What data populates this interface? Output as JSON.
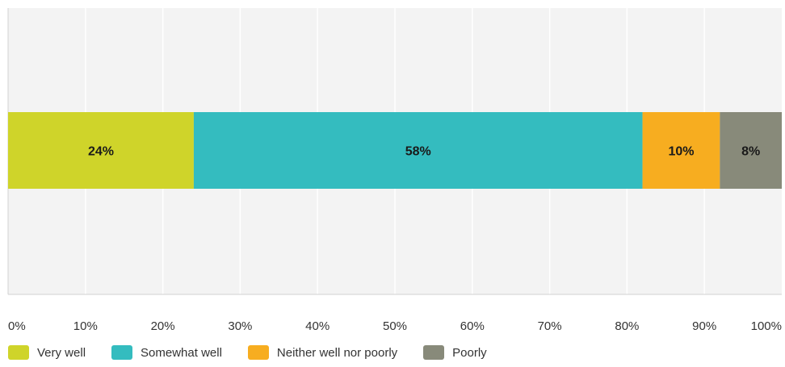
{
  "chart_data": {
    "type": "bar",
    "orientation": "horizontal",
    "stacked": true,
    "categories": [
      ""
    ],
    "series": [
      {
        "name": "Very well",
        "values": [
          24
        ],
        "label": "24%",
        "color": "#cfd42a"
      },
      {
        "name": "Somewhat well",
        "values": [
          58
        ],
        "label": "58%",
        "color": "#34bcbf"
      },
      {
        "name": "Neither well nor poorly",
        "values": [
          10
        ],
        "label": "10%",
        "color": "#f7ad20"
      },
      {
        "name": "Poorly",
        "values": [
          8
        ],
        "label": "8%",
        "color": "#888a7a"
      }
    ],
    "xlim": [
      0,
      100
    ],
    "x_ticks": [
      {
        "value": 0,
        "label": "0%"
      },
      {
        "value": 10,
        "label": "10%"
      },
      {
        "value": 20,
        "label": "20%"
      },
      {
        "value": 30,
        "label": "30%"
      },
      {
        "value": 40,
        "label": "40%"
      },
      {
        "value": 50,
        "label": "50%"
      },
      {
        "value": 60,
        "label": "60%"
      },
      {
        "value": 70,
        "label": "70%"
      },
      {
        "value": 80,
        "label": "80%"
      },
      {
        "value": 90,
        "label": "90%"
      },
      {
        "value": 100,
        "label": "100%"
      }
    ],
    "grid": true,
    "legend_position": "bottom-left",
    "background_color": "#f3f3f3",
    "grid_color": "#ffffff"
  }
}
